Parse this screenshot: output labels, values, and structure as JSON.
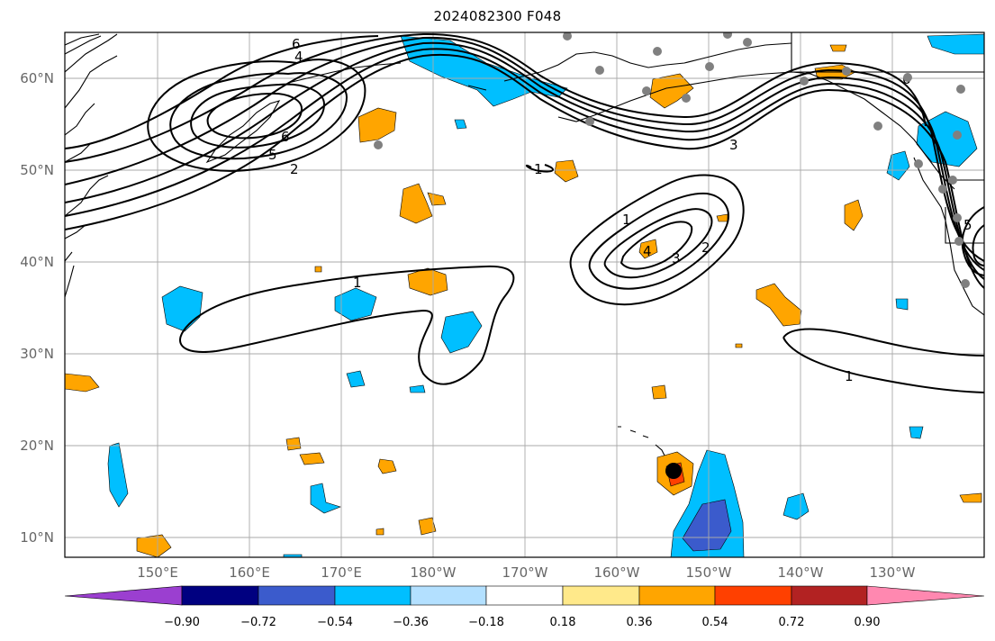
{
  "map": {
    "title": "2024082300 F048",
    "lat_labels": [
      "60°N",
      "50°N",
      "40°N",
      "30°N",
      "20°N",
      "10°N"
    ],
    "lon_labels": [
      "150°E",
      "160°E",
      "170°E",
      "180°W",
      "170°W",
      "160°W",
      "150°W",
      "140°W",
      "130°W"
    ],
    "contour_labels": [
      "6",
      "4",
      "5",
      "6",
      "2",
      "1",
      "1",
      "4",
      "3",
      "2",
      "3",
      "1",
      "1",
      "6",
      "5"
    ],
    "projection": "equirectangular",
    "grid": true
  },
  "colorbar": {
    "ticks": [
      "−0.90",
      "−0.72",
      "−0.54",
      "−0.36",
      "−0.18",
      "0.18",
      "0.36",
      "0.54",
      "0.72",
      "0.90"
    ],
    "colors": [
      "#9b3fd0",
      "#000080",
      "#3b5bcc",
      "#00bfff",
      "#b3e0ff",
      "#ffffff",
      "#ffe98a",
      "#ffa500",
      "#ff4000",
      "#b22222",
      "#ff88b0"
    ],
    "extend": "both"
  }
}
